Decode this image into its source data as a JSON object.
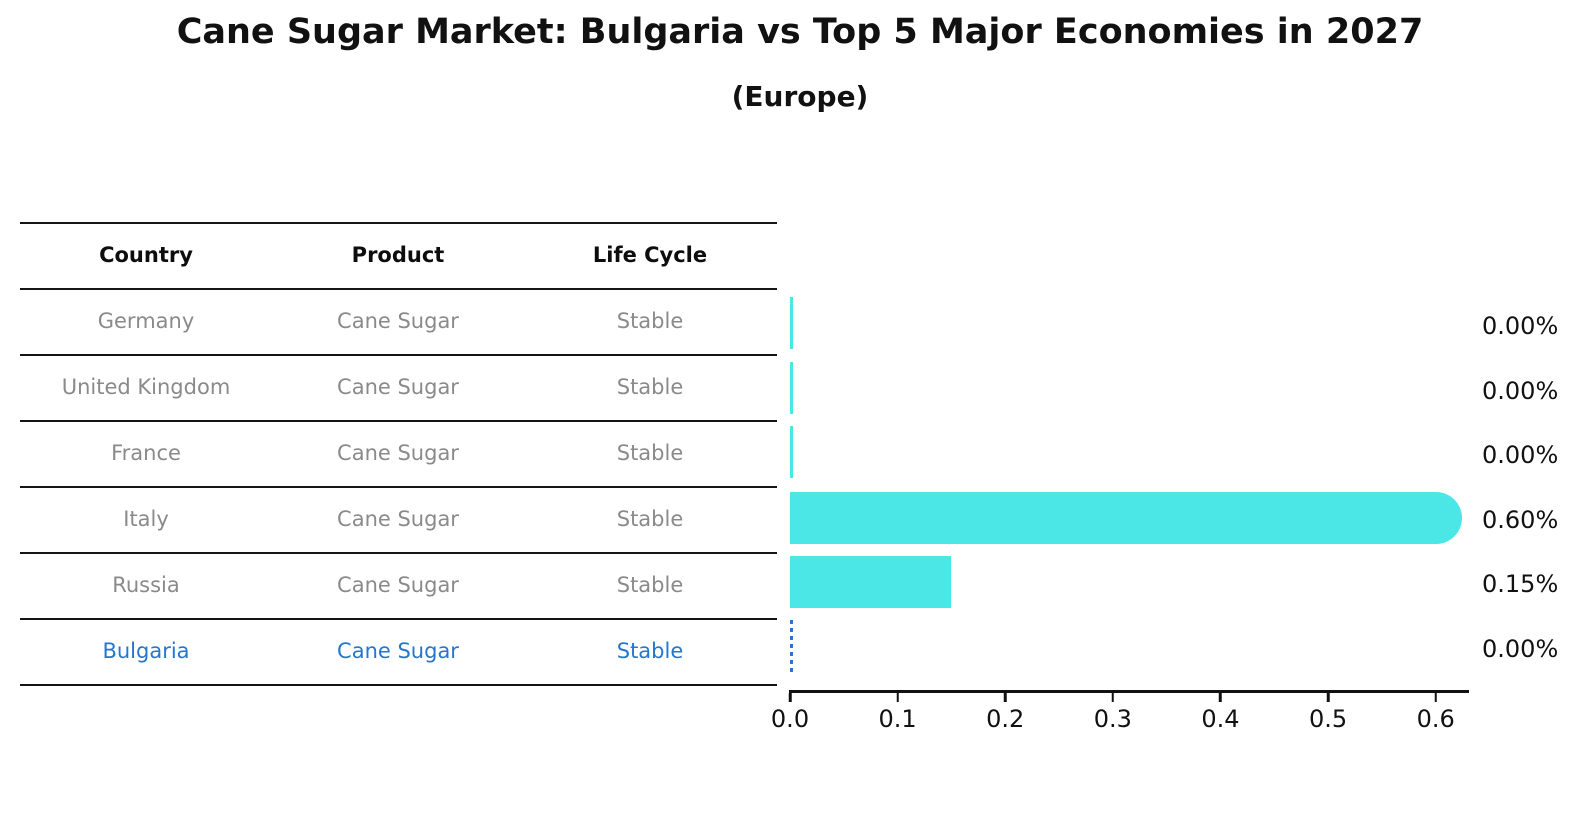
{
  "chart_data": {
    "type": "bar",
    "orientation": "horizontal",
    "title": "Cane Sugar Market: Bulgaria vs Top 5 Major Economies in 2027",
    "subtitle": "(Europe)",
    "categories": [
      "Germany",
      "United Kingdom",
      "France",
      "Italy",
      "Russia",
      "Bulgaria"
    ],
    "values": [
      0.0,
      0.0,
      0.0,
      0.6,
      0.15,
      0.0
    ],
    "value_labels": [
      "0.00%",
      "0.00%",
      "0.00%",
      "0.60%",
      "0.15%",
      "0.00%"
    ],
    "xticks": [
      "0.0",
      "0.1",
      "0.2",
      "0.3",
      "0.4",
      "0.5",
      "0.6"
    ],
    "xlim": [
      0.0,
      0.63
    ],
    "grid": false,
    "legend": "none",
    "bar_color": "#4be6e6",
    "highlight_color": "#2377cd",
    "highlight_index": 5,
    "text_color": "#111111",
    "muted_text_color": "#8a8a8a"
  },
  "table": {
    "headers": [
      "Country",
      "Product",
      "Life Cycle"
    ],
    "rows": [
      {
        "country": "Germany",
        "product": "Cane Sugar",
        "life_cycle": "Stable"
      },
      {
        "country": "United Kingdom",
        "product": "Cane Sugar",
        "life_cycle": "Stable"
      },
      {
        "country": "France",
        "product": "Cane Sugar",
        "life_cycle": "Stable"
      },
      {
        "country": "Italy",
        "product": "Cane Sugar",
        "life_cycle": "Stable"
      },
      {
        "country": "Russia",
        "product": "Cane Sugar",
        "life_cycle": "Stable"
      },
      {
        "country": "Bulgaria",
        "product": "Cane Sugar",
        "life_cycle": "Stable"
      }
    ]
  }
}
